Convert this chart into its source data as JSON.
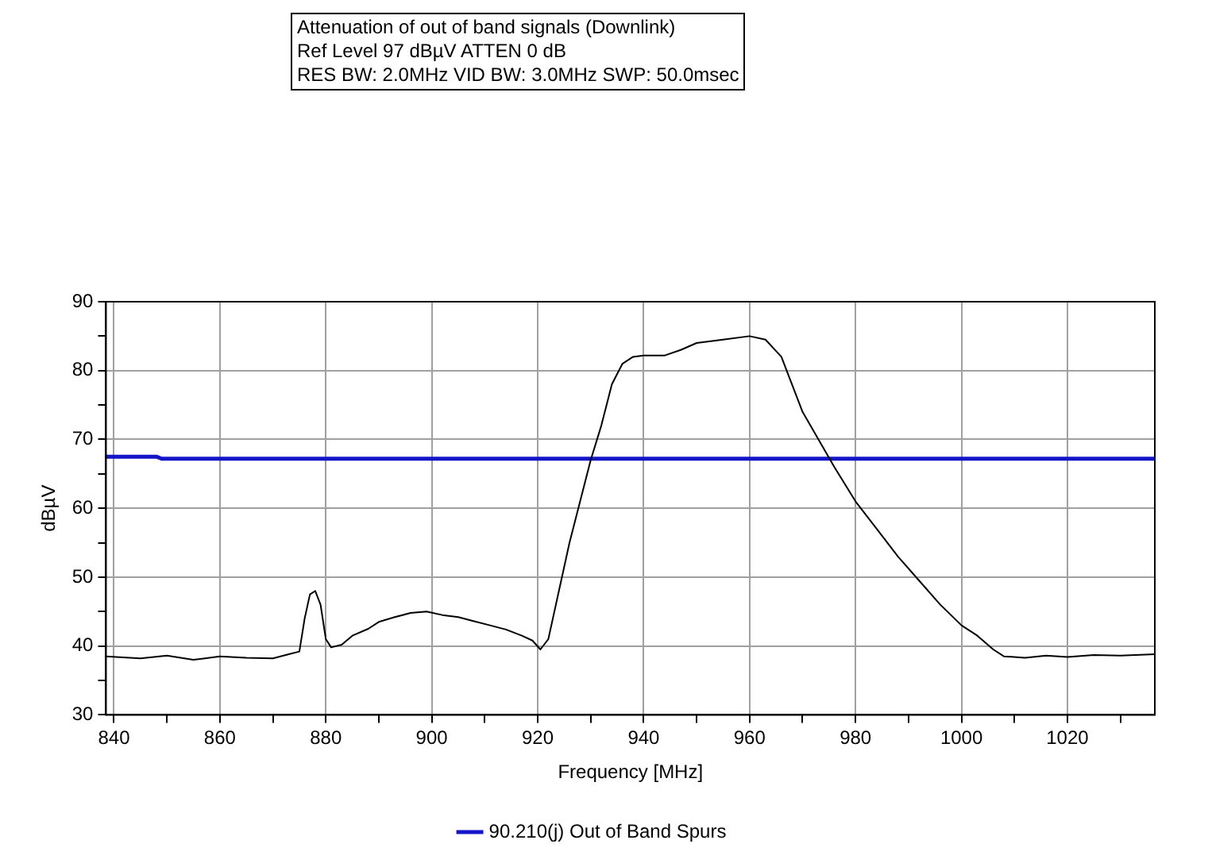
{
  "chart_data": {
    "type": "line",
    "title": "Attenuation of out of band signals (Downlink)",
    "subtitle": "Ref Level 97 dBµV    ATTEN 0 dB",
    "annotations": [
      "RES BW: 2.0MHz  VID BW: 3.0MHz  SWP: 50.0msec"
    ],
    "xlabel": "Frequency [MHz]",
    "ylabel": "dBµV",
    "xlim": [
      838.5,
      1036.5
    ],
    "ylim": [
      30,
      90
    ],
    "xticks": [
      840,
      {
        "value": 850,
        "label": null
      },
      860,
      {
        "value": 870,
        "label": null
      },
      880,
      {
        "value": 890,
        "label": null
      },
      900,
      {
        "value": 910,
        "label": null
      },
      920,
      {
        "value": 930,
        "label": null
      },
      940,
      {
        "value": 950,
        "label": null
      },
      960,
      {
        "value": 970,
        "label": null
      },
      980,
      {
        "value": 990,
        "label": null
      },
      1000,
      {
        "value": 1010,
        "label": null
      },
      1020,
      {
        "value": 1030,
        "label": null
      }
    ],
    "yticks": [
      30,
      {
        "value": 35,
        "label": null
      },
      40,
      {
        "value": 45,
        "label": null
      },
      50,
      {
        "value": 55,
        "label": null
      },
      60,
      {
        "value": 65,
        "label": null
      },
      70,
      {
        "value": 75,
        "label": null
      },
      80,
      {
        "value": 85,
        "label": null
      },
      90
    ],
    "grid": true,
    "legend": "bottom",
    "marker": "none",
    "line_style": "solid",
    "series": [
      {
        "color": "#000000",
        "x": [
          838.5,
          845,
          850,
          855,
          860,
          865,
          870,
          873,
          875,
          876,
          877,
          878,
          879,
          880,
          881,
          883,
          885,
          888,
          890,
          893,
          896,
          899,
          902,
          905,
          908,
          911,
          914,
          917,
          919,
          920.5,
          922,
          924,
          926,
          928,
          930,
          932,
          934,
          936,
          938,
          940,
          944,
          947,
          950,
          955,
          960,
          963,
          966,
          968,
          970,
          973,
          976,
          980,
          984,
          988,
          992,
          996,
          1000,
          1003,
          1006,
          1008,
          1012,
          1016,
          1020,
          1025,
          1030,
          1036.5
        ],
        "values": [
          38.5,
          38.2,
          38.6,
          38.0,
          38.5,
          38.3,
          38.2,
          38.8,
          39.2,
          44,
          47.5,
          48,
          46,
          41,
          39.8,
          40.2,
          41.5,
          42.5,
          43.5,
          44.2,
          44.8,
          45,
          44.5,
          44.2,
          43.6,
          43,
          42.4,
          41.5,
          40.8,
          39.5,
          41,
          48,
          55,
          61,
          67,
          72,
          78,
          81,
          82,
          82.2,
          82.2,
          83,
          84,
          84.5,
          85,
          84.5,
          82,
          78,
          74,
          70,
          66,
          61,
          57,
          53,
          49.5,
          46,
          43,
          41.5,
          39.5,
          38.5,
          38.3,
          38.6,
          38.4,
          38.7,
          38.6,
          38.8
        ]
      },
      {
        "name": "90.210(j) Out of Band Spurs",
        "color": "#1414c8",
        "x": [
          838.5,
          848,
          849,
          1036.5
        ],
        "values": [
          67.5,
          67.5,
          67.2,
          67.2
        ]
      }
    ]
  }
}
